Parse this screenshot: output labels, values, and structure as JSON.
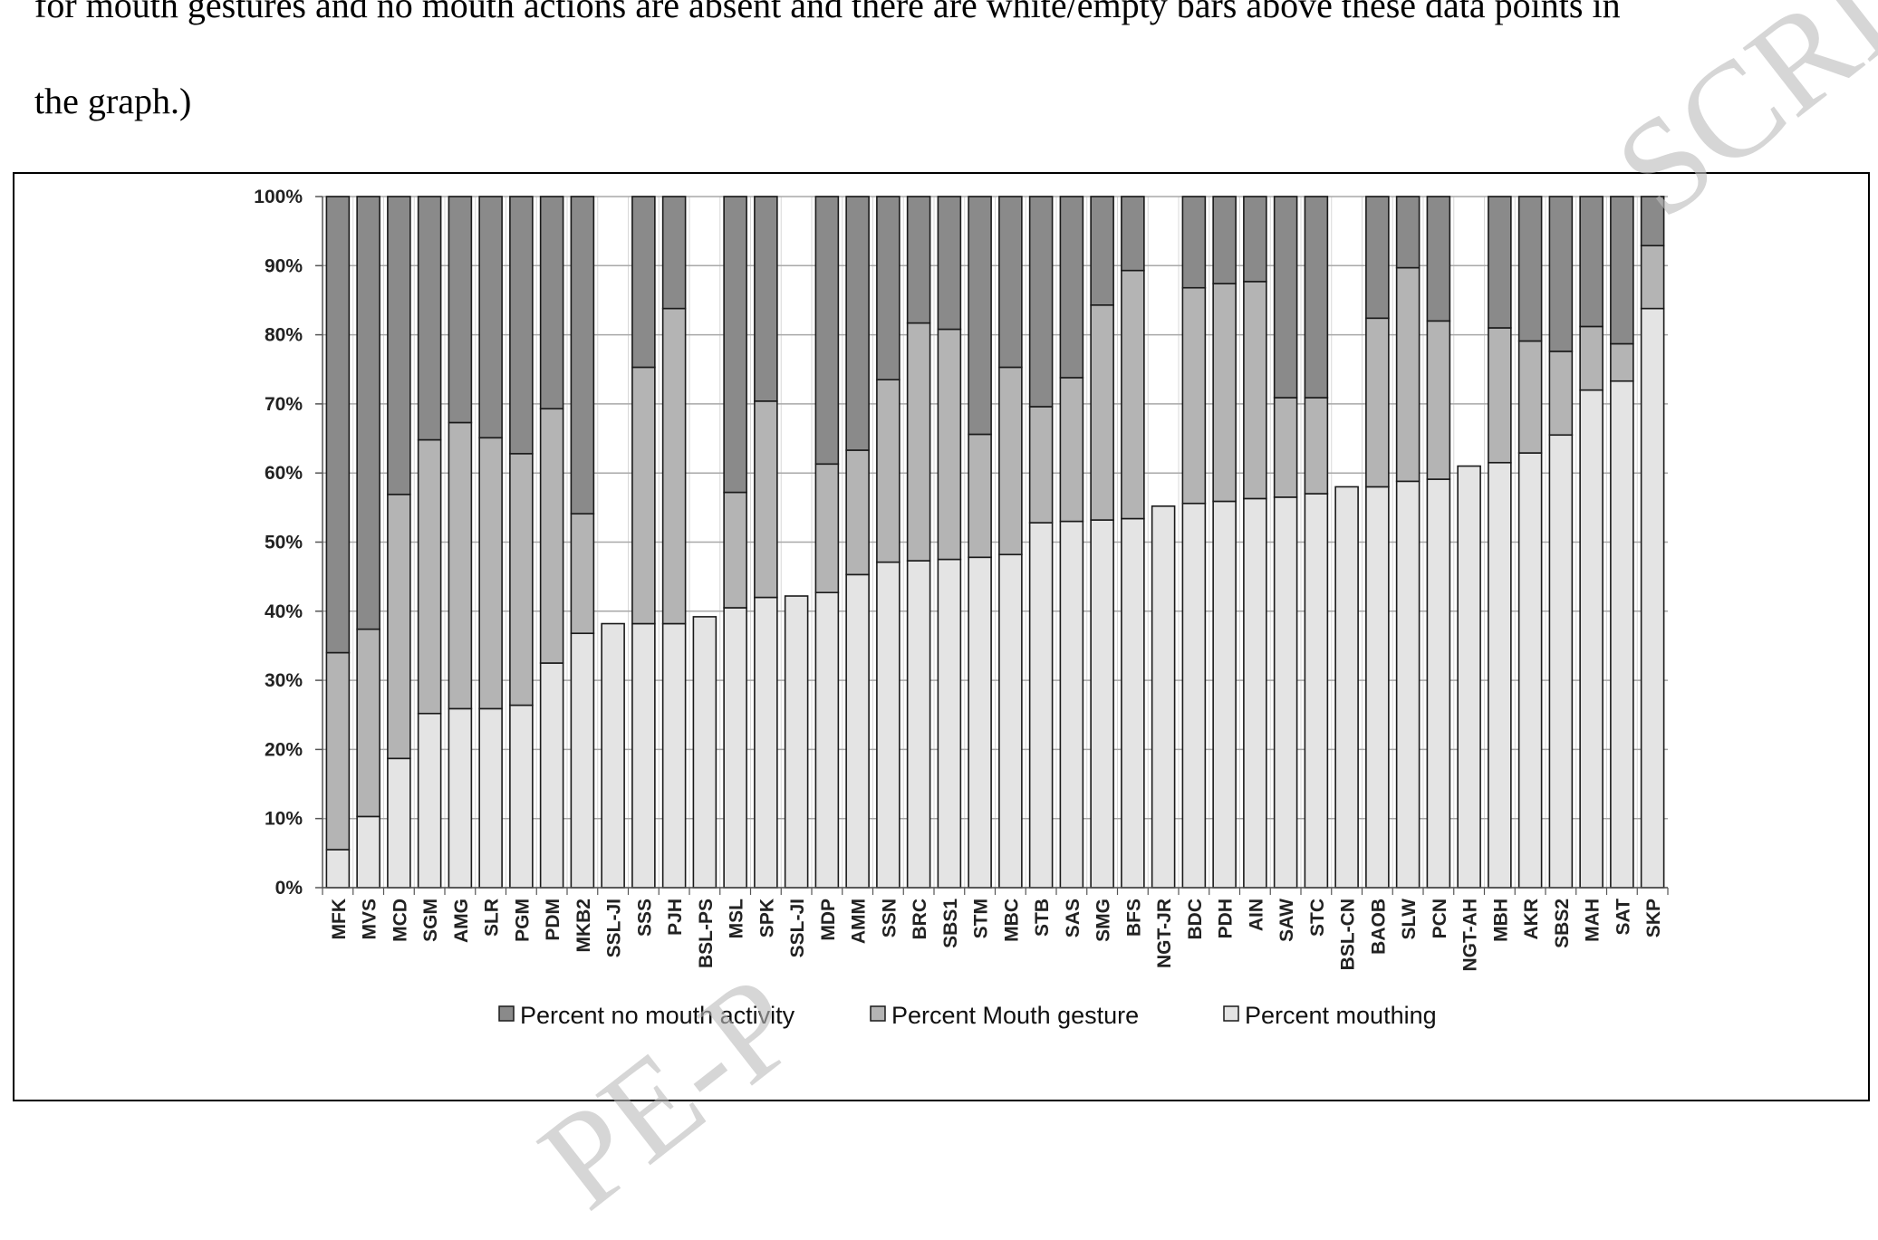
{
  "caption": {
    "line1": "for mouth gestures and no mouth actions are absent and there are white/empty bars above these data points in",
    "line2": "the graph.)"
  },
  "watermark": {
    "top": "SCRI",
    "bottom": "PE-P"
  },
  "colors": {
    "no_mouth": "#8a8a8a",
    "gesture": "#b4b4b4",
    "mouthing": "#e4e4e4",
    "outline": "#1a1a1a",
    "grid": "#a8a8a8"
  },
  "chart_data": {
    "type": "bar",
    "stacked": true,
    "percent": true,
    "ylim": [
      0,
      100
    ],
    "yticks": [
      "0%",
      "10%",
      "20%",
      "30%",
      "40%",
      "50%",
      "60%",
      "70%",
      "80%",
      "90%",
      "100%"
    ],
    "grid": true,
    "legend_position": "bottom",
    "categories": [
      "MFK",
      "MVS",
      "MCD",
      "SGM",
      "AMG",
      "SLR",
      "PGM",
      "PDM",
      "MKB2",
      "SSL-JI",
      "SSS",
      "PJH",
      "BSL-PS",
      "MSL",
      "SPK",
      "SSL-JI",
      "MDP",
      "AMM",
      "SSN",
      "BRC",
      "SBS1",
      "STM",
      "MBC",
      "STB",
      "SAS",
      "SMG",
      "BFS",
      "NGT-JR",
      "BDC",
      "PDH",
      "AIN",
      "SAW",
      "STC",
      "BSL-CN",
      "BAOB",
      "SLW",
      "PCN",
      "NGT-AH",
      "MBH",
      "AKR",
      "SBS2",
      "MAH",
      "SAT",
      "SKP"
    ],
    "series": [
      {
        "name": "Percent mouthing",
        "values": [
          5.5,
          10.3,
          18.7,
          25.2,
          25.9,
          25.9,
          26.4,
          32.5,
          36.8,
          38.2,
          38.2,
          38.2,
          39.2,
          40.5,
          42.0,
          42.2,
          42.7,
          45.3,
          47.1,
          47.3,
          47.5,
          47.8,
          48.2,
          52.8,
          53.0,
          53.2,
          53.4,
          55.2,
          55.6,
          55.9,
          56.3,
          56.5,
          57.0,
          58.0,
          58.0,
          58.8,
          59.1,
          61.0,
          61.5,
          62.9,
          65.5,
          72.0,
          73.3,
          83.8
        ]
      },
      {
        "name": "Percent Mouth gesture",
        "values": [
          28.5,
          27.1,
          38.2,
          39.6,
          41.4,
          39.2,
          36.4,
          36.8,
          17.3,
          0,
          37.1,
          45.6,
          0,
          16.7,
          28.4,
          0,
          18.6,
          18.0,
          26.4,
          34.4,
          33.3,
          17.8,
          27.1,
          16.8,
          20.8,
          31.1,
          35.9,
          0,
          31.2,
          31.5,
          31.4,
          14.4,
          13.9,
          0,
          24.4,
          30.9,
          22.9,
          0,
          19.5,
          16.2,
          12.1,
          9.2,
          5.4,
          9.1
        ]
      },
      {
        "name": "Percent no mouth activity",
        "values": [
          66.0,
          62.6,
          43.1,
          35.2,
          32.7,
          34.9,
          37.2,
          30.7,
          45.9,
          0,
          24.7,
          16.2,
          0,
          42.8,
          29.6,
          0,
          38.7,
          36.7,
          26.5,
          18.3,
          19.2,
          34.4,
          24.7,
          30.4,
          26.2,
          15.7,
          10.7,
          0,
          13.2,
          12.6,
          12.3,
          29.1,
          29.1,
          0,
          17.6,
          10.3,
          18.0,
          0,
          19.0,
          20.9,
          22.4,
          18.8,
          21.3,
          7.1
        ]
      }
    ],
    "legend": [
      "Percent no mouth activity",
      "Percent Mouth gesture",
      "Percent mouthing"
    ]
  }
}
